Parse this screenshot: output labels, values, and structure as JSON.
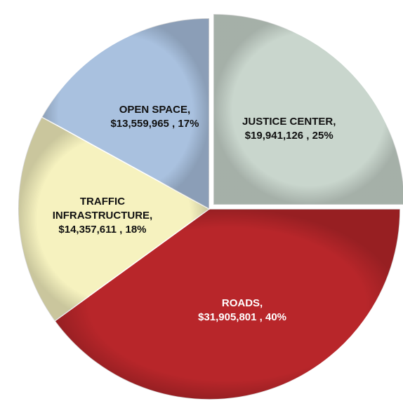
{
  "chart_data": {
    "type": "pie",
    "categories": [
      "JUSTICE CENTER,",
      "ROADS,",
      "TRAFFIC INFRASTRUCTURE,",
      "OPEN SPACE,"
    ],
    "values": [
      19941126,
      31905801,
      14357611,
      13559965
    ],
    "value_labels": [
      "$19,941,126 , 25%",
      "$31,905,801 , 40%",
      "$14,357,611 , 18%",
      "$13,559,965 , 17%"
    ],
    "colors": [
      "#c9d6cd",
      "#b8262a",
      "#f6f2bf",
      "#a9c1df"
    ]
  }
}
